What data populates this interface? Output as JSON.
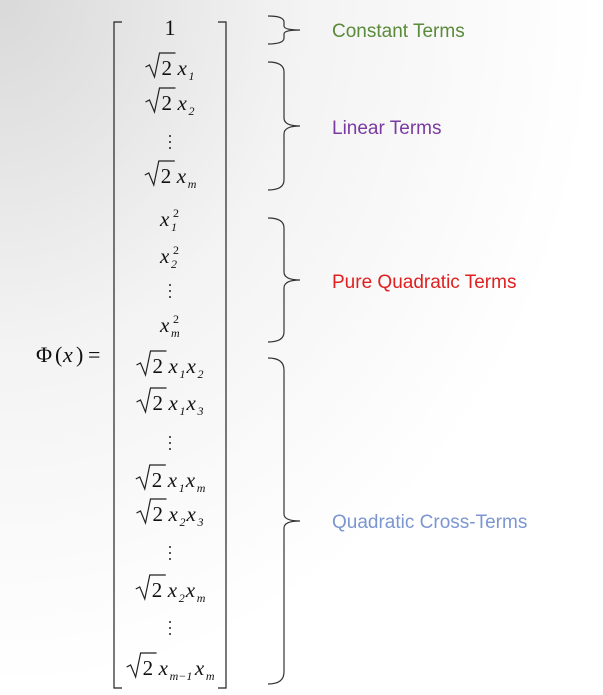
{
  "lhs": {
    "phi": "Φ",
    "open": "(",
    "var": "x",
    "close": ")",
    "eq": "="
  },
  "sqrt_two": "2",
  "rows": [
    {
      "type": "text",
      "text": "1"
    },
    {
      "type": "sqrt",
      "base": "x",
      "sub": "1"
    },
    {
      "type": "sqrt",
      "base": "x",
      "sub": "2"
    },
    {
      "type": "vdots"
    },
    {
      "type": "sqrt",
      "base": "x",
      "sub": "m"
    },
    {
      "type": "square",
      "base": "x",
      "sub": "1",
      "sup": "2"
    },
    {
      "type": "square",
      "base": "x",
      "sub": "2",
      "sup": "2"
    },
    {
      "type": "vdots"
    },
    {
      "type": "square",
      "base": "x",
      "sub": "m",
      "sup": "2"
    },
    {
      "type": "cross",
      "a": "1",
      "b": "2"
    },
    {
      "type": "cross",
      "a": "1",
      "b": "3"
    },
    {
      "type": "vdots"
    },
    {
      "type": "cross",
      "a": "1",
      "b": "m"
    },
    {
      "type": "cross",
      "a": "2",
      "b": "3"
    },
    {
      "type": "vdots"
    },
    {
      "type": "cross",
      "a": "2",
      "b": "m"
    },
    {
      "type": "vdots"
    },
    {
      "type": "cross",
      "a": "m−1",
      "b": "m"
    }
  ],
  "groups": [
    {
      "label": "Constant Terms",
      "color": "#5a8a3a"
    },
    {
      "label": "Linear Terms",
      "color": "#7a3aa0"
    },
    {
      "label": "Pure Quadratic Terms",
      "color": "#e02020"
    },
    {
      "label": "Quadratic Cross-Terms",
      "color": "#7b96d0"
    }
  ]
}
